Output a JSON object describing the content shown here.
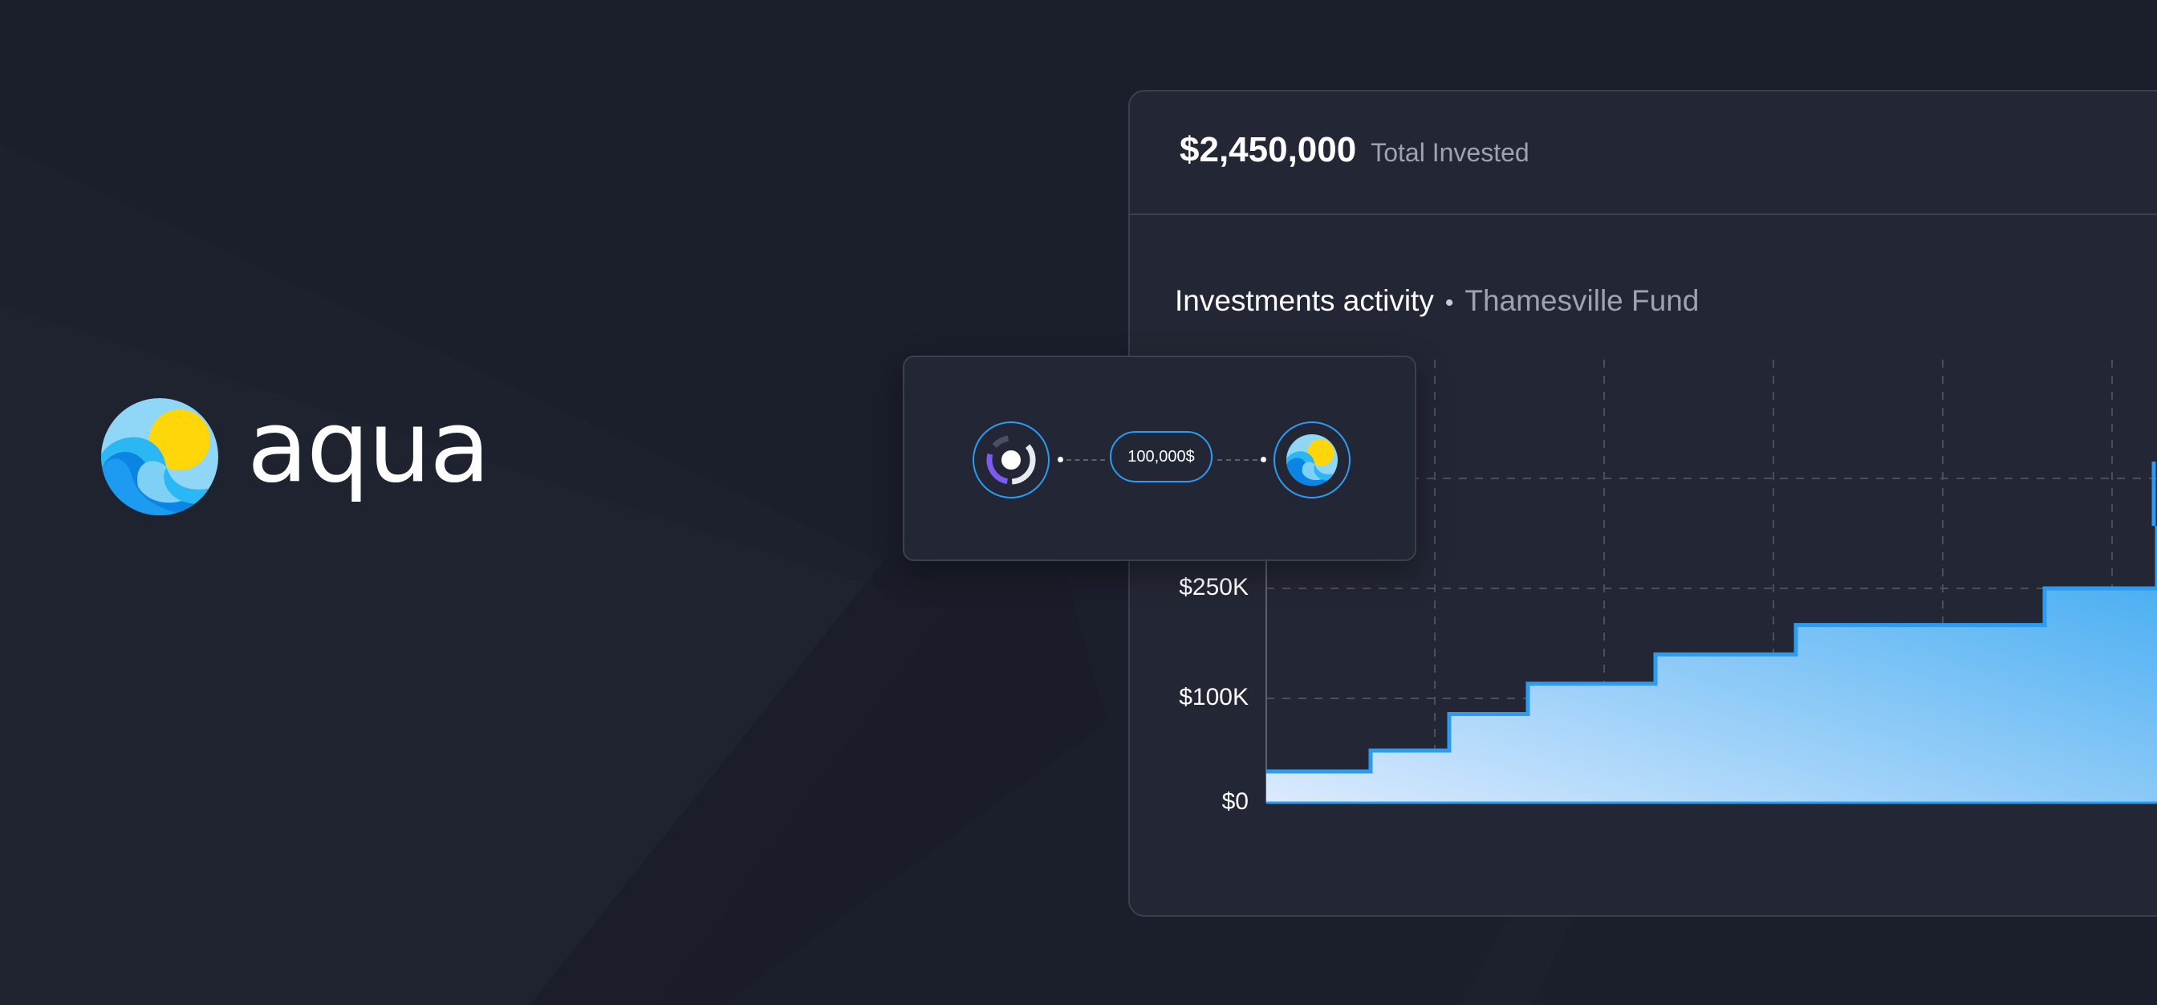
{
  "brand": {
    "name": "aqua",
    "logo_icon": "aqua-wave-sun-logo"
  },
  "summary": {
    "total_amount": "$2,450,000",
    "total_label": "Total Invested"
  },
  "activity": {
    "title": "Investments activity",
    "separator": "•",
    "fund_name": "Thamesville Fund"
  },
  "transfer": {
    "amount": "100,000$",
    "source_icon": "donut-segment-icon",
    "destination_icon": "aqua-wave-sun-logo"
  },
  "colors": {
    "background": "#1b1e2b",
    "card": "#232634",
    "card_border": "#3b3f4f",
    "accent_blue": "#2b9cf2",
    "fill_light": "#dbeafe",
    "fill_dark": "#3aa8f0",
    "sun_yellow": "#ffd60a",
    "donut_purple": "#7c5cf0"
  },
  "chart_data": {
    "type": "area",
    "step": true,
    "y_tick_labels": [
      "$0",
      "$100K",
      "$250K"
    ],
    "y_ticks": [
      0,
      100000,
      250000
    ],
    "grid": true,
    "points": [
      {
        "x": 0,
        "y": 30000
      },
      {
        "x": 1,
        "y": 50000
      },
      {
        "x": 2,
        "y": 85000
      },
      {
        "x": 3,
        "y": 120000
      },
      {
        "x": 4,
        "y": 160000
      },
      {
        "x": 5,
        "y": 200000
      },
      {
        "x": 6,
        "y": 250000
      },
      {
        "x": 7,
        "y": 310000
      },
      {
        "x": 8,
        "y": 380000
      }
    ]
  }
}
